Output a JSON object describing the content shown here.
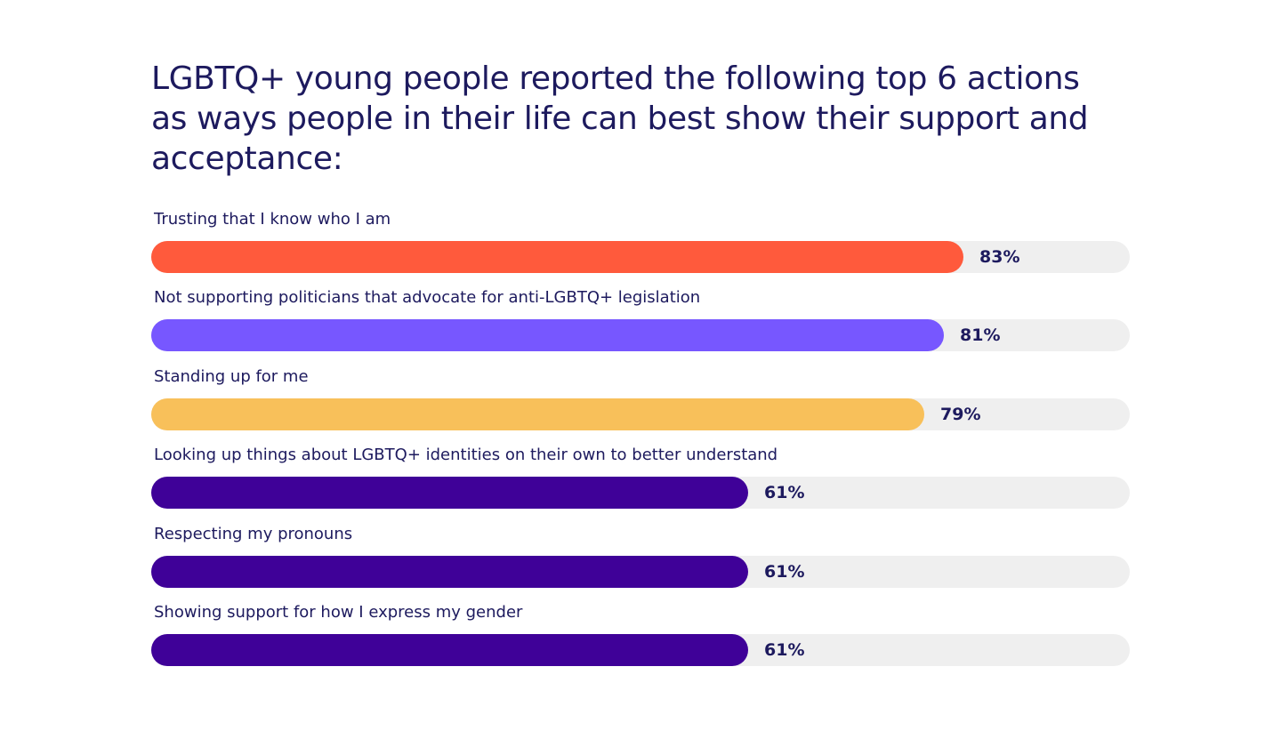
{
  "chart_data": {
    "type": "bar",
    "orientation": "horizontal",
    "title": "LGBTQ+ young people reported the following top 6 actions as ways people in their life can best show their support and acceptance:",
    "categories": [
      "Trusting that I know who I am",
      "Not supporting politicians that advocate for anti-LGBTQ+ legislation",
      "Standing up for me",
      "Looking up things about LGBTQ+ identities on their own to better understand",
      "Respecting my pronouns",
      "Showing support for how I express my gender"
    ],
    "values": [
      83,
      81,
      79,
      61,
      61,
      61
    ],
    "value_labels": [
      "83%",
      "81%",
      "79%",
      "61%",
      "61%",
      "61%"
    ],
    "colors": [
      "#ff5a3c",
      "#7757ff",
      "#f8c05a",
      "#3f0198",
      "#3f0198",
      "#3f0198"
    ],
    "track_color": "#efefef",
    "xlim": [
      0,
      100
    ],
    "grid": false
  }
}
